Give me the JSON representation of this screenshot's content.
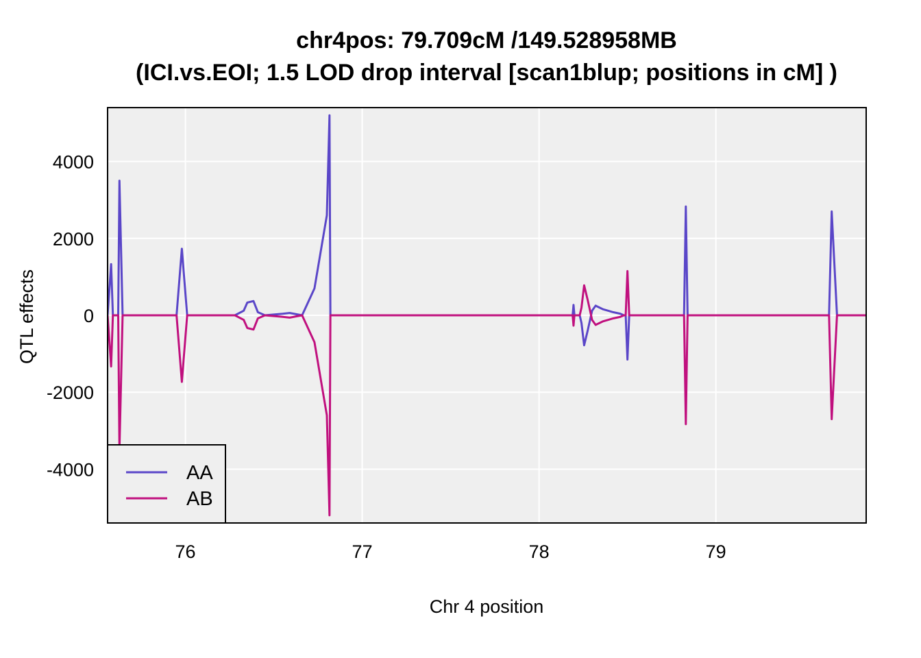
{
  "chart_data": {
    "type": "line",
    "title": "chr4pos: 79.709cM /149.528958MB",
    "subtitle": "(ICI.vs.EOI; 1.5 LOD drop interval [scan1blup; positions in cM] )",
    "xlabel": "Chr 4 position",
    "ylabel": "QTL effects",
    "xlim": [
      75.56,
      79.85
    ],
    "ylim": [
      -5400,
      5400
    ],
    "x_ticks": [
      76,
      77,
      78,
      79
    ],
    "y_ticks": [
      -4000,
      -2000,
      0,
      2000,
      4000
    ],
    "x_tick_labels": [
      "76",
      "77",
      "78",
      "79"
    ],
    "y_tick_labels": [
      "-4000",
      "-2000",
      "0",
      "2000",
      "4000"
    ],
    "grid": true,
    "legend_position": "bottom-left",
    "panel_background": "#efefef",
    "series": [
      {
        "name": "AA",
        "color": "#5a46c8",
        "points": [
          [
            75.56,
            0
          ],
          [
            75.58,
            1330
          ],
          [
            75.59,
            0
          ],
          [
            75.62,
            0
          ],
          [
            75.627,
            3500
          ],
          [
            75.645,
            0
          ],
          [
            75.95,
            0
          ],
          [
            75.98,
            1730
          ],
          [
            76.01,
            0
          ],
          [
            76.28,
            0
          ],
          [
            76.33,
            120
          ],
          [
            76.35,
            330
          ],
          [
            76.385,
            370
          ],
          [
            76.41,
            80
          ],
          [
            76.45,
            0
          ],
          [
            76.5,
            20
          ],
          [
            76.55,
            40
          ],
          [
            76.59,
            60
          ],
          [
            76.66,
            0
          ],
          [
            76.73,
            700
          ],
          [
            76.8,
            2600
          ],
          [
            76.815,
            5200
          ],
          [
            76.82,
            0
          ],
          [
            78.19,
            0
          ],
          [
            78.195,
            270
          ],
          [
            78.2,
            0
          ],
          [
            78.23,
            0
          ],
          [
            78.24,
            -200
          ],
          [
            78.255,
            -780
          ],
          [
            78.275,
            -400
          ],
          [
            78.3,
            120
          ],
          [
            78.32,
            250
          ],
          [
            78.36,
            160
          ],
          [
            78.42,
            80
          ],
          [
            78.46,
            40
          ],
          [
            78.48,
            0
          ],
          [
            78.49,
            0
          ],
          [
            78.5,
            -1150
          ],
          [
            78.51,
            0
          ],
          [
            78.82,
            0
          ],
          [
            78.83,
            2830
          ],
          [
            78.84,
            0
          ],
          [
            79.64,
            0
          ],
          [
            79.655,
            2700
          ],
          [
            79.685,
            0
          ],
          [
            79.85,
            0
          ]
        ]
      },
      {
        "name": "AB",
        "color": "#c0107e",
        "points": [
          [
            75.56,
            0
          ],
          [
            75.58,
            -1330
          ],
          [
            75.59,
            0
          ],
          [
            75.62,
            0
          ],
          [
            75.627,
            -3500
          ],
          [
            75.645,
            0
          ],
          [
            75.95,
            0
          ],
          [
            75.98,
            -1730
          ],
          [
            76.01,
            0
          ],
          [
            76.28,
            0
          ],
          [
            76.33,
            -120
          ],
          [
            76.35,
            -330
          ],
          [
            76.385,
            -370
          ],
          [
            76.41,
            -80
          ],
          [
            76.45,
            0
          ],
          [
            76.5,
            -20
          ],
          [
            76.55,
            -40
          ],
          [
            76.59,
            -60
          ],
          [
            76.66,
            0
          ],
          [
            76.73,
            -700
          ],
          [
            76.8,
            -2600
          ],
          [
            76.815,
            -5200
          ],
          [
            76.82,
            0
          ],
          [
            78.19,
            0
          ],
          [
            78.195,
            -270
          ],
          [
            78.2,
            0
          ],
          [
            78.23,
            0
          ],
          [
            78.24,
            200
          ],
          [
            78.255,
            780
          ],
          [
            78.275,
            400
          ],
          [
            78.3,
            -120
          ],
          [
            78.32,
            -250
          ],
          [
            78.36,
            -160
          ],
          [
            78.42,
            -80
          ],
          [
            78.46,
            -40
          ],
          [
            78.48,
            0
          ],
          [
            78.49,
            0
          ],
          [
            78.5,
            1150
          ],
          [
            78.51,
            0
          ],
          [
            78.82,
            0
          ],
          [
            78.83,
            -2830
          ],
          [
            78.84,
            0
          ],
          [
            79.64,
            0
          ],
          [
            79.655,
            -2700
          ],
          [
            79.685,
            0
          ],
          [
            79.85,
            0
          ]
        ]
      }
    ]
  }
}
